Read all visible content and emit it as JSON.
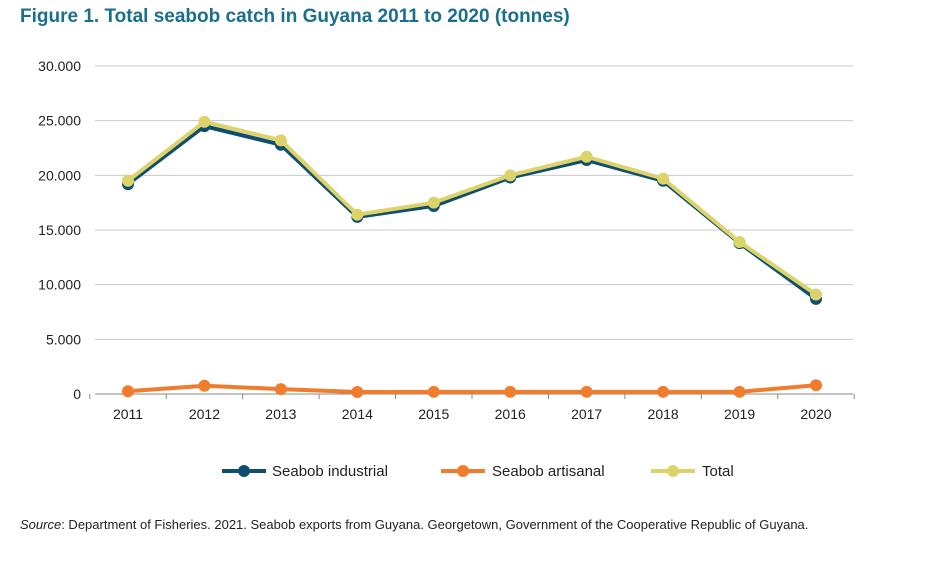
{
  "figure_title": "Figure 1. Total seabob catch in Guyana 2011 to 2020 (tonnes)",
  "source": {
    "label": "Source",
    "text": ": Department of Fisheries. 2021. Seabob exports from Guyana. Georgetown, Government of the Cooperative Republic of Guyana."
  },
  "chart_data": {
    "type": "line",
    "title": "Figure 1. Total seabob catch in Guyana 2011 to 2020 (tonnes)",
    "xlabel": "",
    "ylabel": "",
    "x": [
      "2011",
      "2012",
      "2013",
      "2014",
      "2015",
      "2016",
      "2017",
      "2018",
      "2019",
      "2020"
    ],
    "ylim": [
      0,
      30000
    ],
    "yticks": [
      0,
      5000,
      10000,
      15000,
      20000,
      25000,
      30000
    ],
    "ytick_labels": [
      "0",
      "5.000",
      "10.000",
      "15.000",
      "20.000",
      "25.000",
      "30.000"
    ],
    "grid": true,
    "legend_position": "bottom",
    "series": [
      {
        "name": "Seabob industrial",
        "color": "#0f4e6e",
        "values": [
          19200,
          24500,
          22800,
          16200,
          17200,
          19800,
          21400,
          19500,
          13800,
          8700
        ]
      },
      {
        "name": "Seabob artisanal",
        "color": "#ef7d2d",
        "values": [
          250,
          750,
          450,
          180,
          200,
          200,
          200,
          200,
          200,
          800
        ]
      },
      {
        "name": "Total",
        "color": "#dcd46a",
        "values": [
          19500,
          24900,
          23200,
          16400,
          17500,
          20000,
          21700,
          19700,
          13900,
          9100
        ]
      }
    ]
  }
}
